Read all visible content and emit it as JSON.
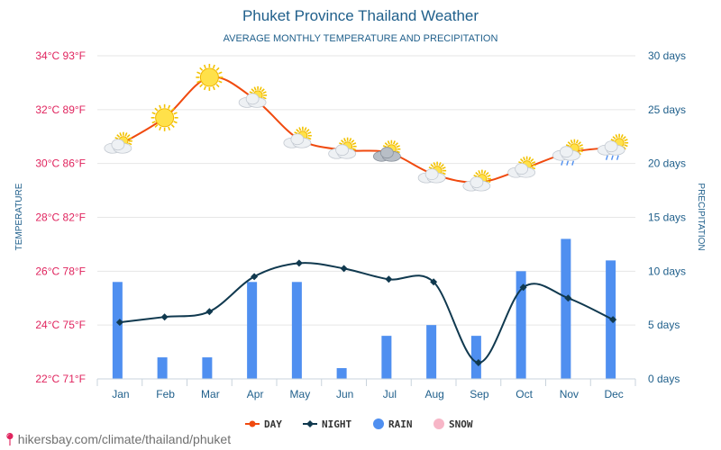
{
  "chart_data": {
    "type": "line",
    "title": "Phuket Province Thailand Weather",
    "subtitle": "AVERAGE MONTHLY TEMPERATURE AND PRECIPITATION",
    "ylabel": "TEMPERATURE",
    "y2label": "PRECIPITATION",
    "categories": [
      "Jan",
      "Feb",
      "Mar",
      "Apr",
      "May",
      "Jun",
      "Jul",
      "Aug",
      "Sep",
      "Oct",
      "Nov",
      "Dec"
    ],
    "ylim": [
      22,
      34
    ],
    "y2lim": [
      0,
      30
    ],
    "y_ticks": [
      {
        "value": 34,
        "label": "34°C 93°F"
      },
      {
        "value": 32,
        "label": "32°C 89°F"
      },
      {
        "value": 30,
        "label": "30°C 86°F"
      },
      {
        "value": 28,
        "label": "28°C 82°F"
      },
      {
        "value": 26,
        "label": "26°C 78°F"
      },
      {
        "value": 24,
        "label": "24°C 75°F"
      },
      {
        "value": 22,
        "label": "22°C 71°F"
      }
    ],
    "y2_ticks": [
      {
        "value": 30,
        "label": "30 days"
      },
      {
        "value": 25,
        "label": "25 days"
      },
      {
        "value": 20,
        "label": "20 days"
      },
      {
        "value": 15,
        "label": "15 days"
      },
      {
        "value": 10,
        "label": "10 days"
      },
      {
        "value": 5,
        "label": "5 days"
      },
      {
        "value": 0,
        "label": "0 days"
      }
    ],
    "series": [
      {
        "name": "DAY",
        "type": "line",
        "axis": "left",
        "color": "#f04a0f",
        "values": [
          30.7,
          31.7,
          33.2,
          32.4,
          30.9,
          30.5,
          30.4,
          29.6,
          29.3,
          29.8,
          30.4,
          30.6
        ]
      },
      {
        "name": "NIGHT",
        "type": "line",
        "axis": "left",
        "color": "#10394f",
        "values": [
          24.1,
          24.3,
          24.5,
          25.8,
          26.3,
          26.1,
          25.7,
          25.6,
          22.6,
          25.4,
          25.0,
          24.2
        ]
      },
      {
        "name": "RAIN",
        "type": "bar",
        "axis": "right",
        "color": "#4f8ff0",
        "values": [
          9,
          2,
          2,
          9,
          9,
          1,
          4,
          5,
          4,
          10,
          13,
          11
        ]
      },
      {
        "name": "SNOW",
        "type": "bar",
        "axis": "right",
        "color": "#f7b6c7",
        "values": [
          0,
          0,
          0,
          0,
          0,
          0,
          0,
          0,
          0,
          0,
          0,
          0
        ]
      }
    ],
    "weather_icons": [
      "partly-cloudy-icon",
      "sun-icon",
      "sun-icon",
      "partly-cloudy-icon",
      "partly-cloudy-icon",
      "partly-cloudy-icon",
      "cloudy-sun-icon",
      "partly-cloudy-icon",
      "partly-cloudy-icon",
      "partly-cloudy-icon",
      "rain-cloud-icon",
      "rain-cloud-icon"
    ],
    "grid": true,
    "legend_position": "bottom"
  },
  "footer": {
    "url": "hikersbay.com/climate/thailand/phuket"
  }
}
